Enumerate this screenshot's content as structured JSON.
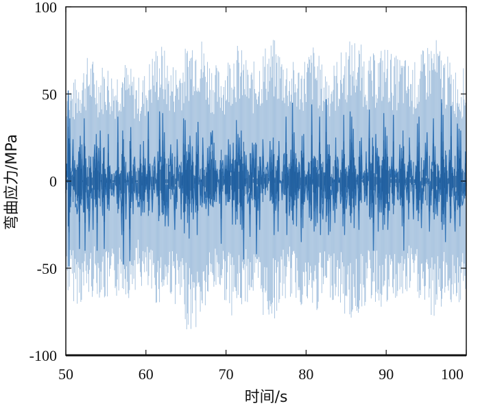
{
  "chart_data": {
    "type": "line",
    "title": "",
    "xlabel": "时间/s",
    "ylabel": "弯曲应力/MPa",
    "xlim": [
      50,
      100
    ],
    "ylim": [
      -100,
      100
    ],
    "xticks": [
      50,
      60,
      70,
      80,
      90,
      100
    ],
    "yticks": [
      100,
      50,
      0,
      -50,
      -100
    ],
    "x_tick_labels": [
      "50",
      "60",
      "70",
      "80",
      "90",
      "100"
    ],
    "y_tick_labels": [
      "100",
      "50",
      "0",
      "-50",
      "-100"
    ],
    "grid": false,
    "legend": "none",
    "series": [
      {
        "color": "#2b6fb3",
        "x": [
          50,
          51,
          52,
          53,
          54,
          55,
          56,
          57,
          58,
          59,
          60,
          61,
          62,
          63,
          64,
          65,
          66,
          67,
          68,
          69,
          70,
          71,
          72,
          73,
          74,
          75,
          76,
          77,
          78,
          79,
          80,
          81,
          82,
          83,
          84,
          85,
          86,
          87,
          88,
          89,
          90,
          91,
          92,
          93,
          94,
          95,
          96,
          97,
          98,
          99,
          100
        ],
        "upper_envelope": [
          62,
          58,
          68,
          74,
          66,
          70,
          63,
          72,
          66,
          60,
          64,
          78,
          80,
          68,
          70,
          78,
          90,
          84,
          72,
          66,
          70,
          82,
          76,
          66,
          72,
          80,
          82,
          76,
          70,
          68,
          74,
          80,
          68,
          66,
          72,
          80,
          84,
          78,
          72,
          76,
          80,
          72,
          74,
          68,
          70,
          80,
          84,
          76,
          70,
          64,
          66
        ],
        "lower_envelope": [
          -65,
          -70,
          -72,
          -68,
          -66,
          -72,
          -70,
          -64,
          -68,
          -60,
          -66,
          -72,
          -70,
          -66,
          -74,
          -85,
          -88,
          -80,
          -70,
          -64,
          -70,
          -80,
          -74,
          -68,
          -72,
          -82,
          -80,
          -72,
          -68,
          -70,
          -76,
          -78,
          -72,
          -68,
          -70,
          -80,
          -82,
          -74,
          -70,
          -72,
          -76,
          -70,
          -72,
          -66,
          -68,
          -78,
          -80,
          -74,
          -70,
          -72,
          -74
        ],
        "y_sampled_every_0.1s": [
          -7,
          10,
          2,
          52,
          -49,
          36,
          -15,
          5,
          6,
          24,
          -5,
          12,
          -15,
          -13,
          -19,
          -16,
          17,
          -39,
          26,
          -14,
          21,
          -1,
          -18,
          36,
          -40,
          13,
          -4,
          -16,
          -5,
          -29,
          -15,
          14,
          -10,
          -4,
          -28,
          10,
          21,
          -15,
          27,
          -40,
          10,
          19,
          -10,
          29,
          1,
          -8,
          -20,
          19,
          -39,
          7,
          -8,
          2,
          -16,
          27,
          -17,
          9,
          -2,
          -8,
          -8,
          -1,
          -9,
          1,
          5,
          6,
          -13,
          37,
          -16,
          4,
          -9,
          -12,
          -31,
          29,
          -48,
          14,
          2,
          -22,
          -1,
          5,
          1,
          -11,
          -46,
          31,
          -12,
          3,
          -19,
          12,
          14,
          -1,
          -11,
          -1,
          -15,
          -12,
          -15,
          21,
          -20,
          5,
          -18,
          23,
          -18,
          13,
          -5,
          4,
          -12,
          40,
          -17,
          10,
          0,
          -5,
          -18,
          -5,
          10,
          14,
          3,
          -2,
          -9,
          17,
          -23,
          40,
          11,
          14,
          -18,
          39,
          -19,
          28,
          -26,
          -2,
          -20,
          -2,
          -26,
          9,
          9,
          21,
          -5,
          16,
          -6,
          -8,
          -28,
          -3,
          -16,
          24,
          0,
          7,
          9,
          8,
          -22,
          5,
          -7,
          36,
          -30,
          35,
          -13,
          17,
          -24,
          21,
          -33,
          26,
          11,
          -18,
          20,
          -22,
          -7,
          3,
          -18,
          28,
          -31,
          34,
          4,
          1,
          -14,
          1,
          -15,
          25,
          6,
          -13,
          -6,
          -16,
          -10,
          19,
          -20,
          20,
          -13,
          28,
          21,
          29,
          -15,
          22,
          -12,
          12,
          -12,
          7,
          1,
          -2,
          -13,
          12,
          -36,
          9,
          12,
          5,
          -2,
          15,
          -14,
          15,
          -12,
          24,
          -12,
          21,
          5,
          10,
          -25,
          22,
          -11,
          12,
          -25,
          35,
          -22,
          27,
          9,
          25,
          -25,
          29,
          -28,
          10,
          -45,
          17,
          -3,
          15,
          3,
          -13,
          -11,
          -7,
          -32,
          16,
          -10,
          22,
          2,
          21,
          -15,
          22,
          -42,
          -3,
          -17,
          6,
          -28,
          14,
          4,
          -7,
          24,
          9,
          3,
          -8,
          8,
          7,
          11,
          3,
          0,
          23,
          -11,
          18,
          -13,
          25,
          -31,
          2,
          -17,
          -12,
          12,
          -29,
          23,
          -1,
          -1,
          0,
          -11,
          -2,
          15,
          16,
          -8,
          37,
          -31,
          8,
          5,
          -20,
          -14,
          18,
          -17,
          45,
          -25,
          28,
          -11,
          16,
          -26,
          8,
          -10,
          11,
          9,
          -4,
          -35,
          26,
          -27,
          27,
          -12,
          -5,
          4,
          -7,
          -11,
          11,
          -21,
          4,
          -23,
          44,
          -2,
          13,
          -29,
          14,
          -26,
          8,
          -24,
          6,
          7,
          37,
          -31,
          10,
          -16,
          -22,
          -10,
          5,
          -10,
          47,
          -20,
          21,
          -31,
          21,
          -29,
          -5,
          -8,
          2,
          -17,
          1,
          -24,
          25,
          -16,
          14,
          12,
          -1,
          2,
          -13,
          -10,
          18,
          -26,
          38,
          -31,
          7,
          -16,
          -11,
          -6,
          9,
          -14,
          40,
          -24,
          37,
          -10,
          30,
          -27,
          9,
          -14,
          1,
          4,
          -7,
          -28,
          23,
          -11,
          25,
          1,
          2,
          5,
          -12,
          -9,
          17,
          -14,
          5,
          0,
          41,
          -22,
          10,
          -21,
          25,
          -40,
          -9,
          -5,
          27,
          4,
          19,
          -29,
          14,
          -18,
          2,
          -18,
          12,
          -28,
          39,
          -25,
          31,
          -13,
          26,
          -28,
          -12,
          -17,
          7,
          2,
          14,
          -13,
          38,
          -14,
          6,
          2,
          7,
          -10,
          -11,
          2,
          21,
          -14,
          19,
          -26,
          29,
          -40,
          10,
          -2,
          -4,
          -11,
          9,
          -22,
          25,
          2,
          12,
          4,
          -6,
          -22,
          -2,
          -2,
          9,
          -17,
          33,
          -23,
          37,
          -11,
          0,
          -27,
          -4,
          -13,
          12,
          -3,
          22,
          3,
          28,
          -1,
          -3,
          -29,
          0,
          -14,
          11,
          9,
          36,
          -22,
          20,
          -19,
          -5,
          -20,
          9,
          -12,
          2,
          -8,
          47,
          -28,
          38,
          -25,
          8,
          -35,
          15,
          -12,
          -3,
          3,
          18,
          -24,
          43,
          -9,
          8,
          -6,
          -14,
          -29,
          -6,
          -11,
          33,
          -14,
          30,
          -26,
          29,
          -10,
          -14,
          -12,
          -1,
          -10,
          17,
          -3
        ]
      }
    ]
  }
}
